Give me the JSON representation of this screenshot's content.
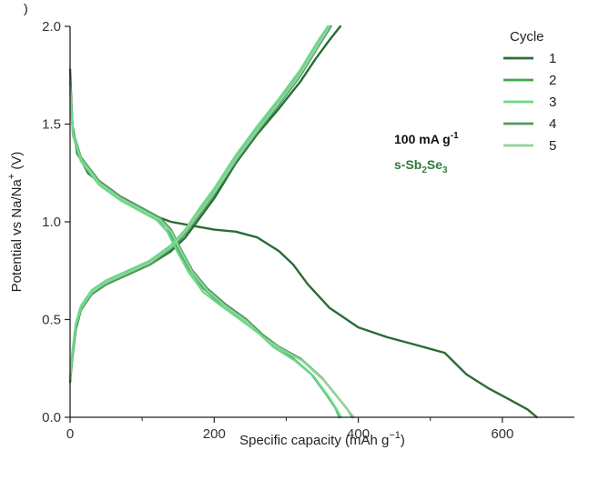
{
  "chart_data": {
    "type": "line",
    "panel_label": ")",
    "xlabel": "Specific capacity (mAh g",
    "xlabel_sup": "−1",
    "xlabel_end": ")",
    "ylabel": "Potential vs Na/Na",
    "ylabel_sup": "+",
    "ylabel_end": " (V)",
    "xlim": [
      0,
      700
    ],
    "ylim": [
      0,
      2.0
    ],
    "xticks": [
      0,
      200,
      400,
      600
    ],
    "yticks": [
      0.0,
      0.5,
      1.0,
      1.5,
      2.0
    ],
    "xtick_labels": [
      "0",
      "200",
      "400",
      "600"
    ],
    "ytick_labels": [
      "0.0",
      "0.5",
      "1.0",
      "1.5",
      "2.0"
    ],
    "grid": false,
    "legend": {
      "title": "Cycle",
      "placement": "top-right",
      "entries": [
        "1",
        "2",
        "3",
        "4",
        "5"
      ]
    },
    "annotations": {
      "rate": "100 mA g",
      "rate_sup": "-1",
      "material_prefix": "s-Sb",
      "material_sub1": "2",
      "material_mid": "Se",
      "material_sub2": "3",
      "material_color": "#2e7a3c"
    },
    "series": [
      {
        "name": "1",
        "color": "#2a6b36",
        "discharge": [
          [
            0,
            1.78
          ],
          [
            3,
            1.5
          ],
          [
            10,
            1.35
          ],
          [
            25,
            1.25
          ],
          [
            50,
            1.17
          ],
          [
            80,
            1.1
          ],
          [
            110,
            1.04
          ],
          [
            140,
            1.0
          ],
          [
            170,
            0.98
          ],
          [
            200,
            0.96
          ],
          [
            230,
            0.95
          ],
          [
            260,
            0.92
          ],
          [
            290,
            0.85
          ],
          [
            310,
            0.78
          ],
          [
            330,
            0.68
          ],
          [
            360,
            0.56
          ],
          [
            400,
            0.46
          ],
          [
            440,
            0.41
          ],
          [
            480,
            0.37
          ],
          [
            520,
            0.33
          ],
          [
            550,
            0.22
          ],
          [
            580,
            0.15
          ],
          [
            610,
            0.09
          ],
          [
            635,
            0.04
          ],
          [
            648,
            0.0
          ]
        ],
        "charge": [
          [
            0,
            0.18
          ],
          [
            3,
            0.3
          ],
          [
            8,
            0.45
          ],
          [
            15,
            0.55
          ],
          [
            30,
            0.63
          ],
          [
            50,
            0.68
          ],
          [
            80,
            0.73
          ],
          [
            110,
            0.78
          ],
          [
            140,
            0.85
          ],
          [
            160,
            0.92
          ],
          [
            180,
            1.02
          ],
          [
            200,
            1.12
          ],
          [
            230,
            1.3
          ],
          [
            260,
            1.45
          ],
          [
            290,
            1.58
          ],
          [
            320,
            1.72
          ],
          [
            340,
            1.83
          ],
          [
            360,
            1.93
          ],
          [
            375,
            2.0
          ]
        ]
      },
      {
        "name": "2",
        "color": "#3ba84f",
        "discharge": [
          [
            0,
            1.7
          ],
          [
            4,
            1.45
          ],
          [
            15,
            1.32
          ],
          [
            40,
            1.2
          ],
          [
            70,
            1.12
          ],
          [
            100,
            1.06
          ],
          [
            120,
            1.02
          ],
          [
            135,
            0.97
          ],
          [
            150,
            0.86
          ],
          [
            165,
            0.76
          ],
          [
            185,
            0.66
          ],
          [
            210,
            0.58
          ],
          [
            240,
            0.5
          ],
          [
            262,
            0.44
          ],
          [
            280,
            0.37
          ],
          [
            310,
            0.3
          ],
          [
            335,
            0.22
          ],
          [
            355,
            0.12
          ],
          [
            368,
            0.05
          ],
          [
            374,
            0.0
          ]
        ],
        "charge": [
          [
            0,
            0.2
          ],
          [
            3,
            0.32
          ],
          [
            8,
            0.47
          ],
          [
            15,
            0.56
          ],
          [
            30,
            0.64
          ],
          [
            50,
            0.69
          ],
          [
            80,
            0.74
          ],
          [
            110,
            0.79
          ],
          [
            140,
            0.87
          ],
          [
            160,
            0.95
          ],
          [
            180,
            1.06
          ],
          [
            200,
            1.16
          ],
          [
            230,
            1.33
          ],
          [
            260,
            1.48
          ],
          [
            290,
            1.62
          ],
          [
            320,
            1.77
          ],
          [
            345,
            1.92
          ],
          [
            360,
            2.0
          ]
        ]
      },
      {
        "name": "3",
        "color": "#6ed88a",
        "discharge": [
          [
            0,
            1.68
          ],
          [
            4,
            1.44
          ],
          [
            15,
            1.31
          ],
          [
            40,
            1.19
          ],
          [
            70,
            1.11
          ],
          [
            100,
            1.05
          ],
          [
            120,
            1.01
          ],
          [
            135,
            0.95
          ],
          [
            150,
            0.84
          ],
          [
            165,
            0.74
          ],
          [
            185,
            0.64
          ],
          [
            210,
            0.57
          ],
          [
            240,
            0.49
          ],
          [
            262,
            0.43
          ],
          [
            282,
            0.36
          ],
          [
            312,
            0.29
          ],
          [
            338,
            0.21
          ],
          [
            358,
            0.11
          ],
          [
            370,
            0.04
          ],
          [
            376,
            0.0
          ]
        ],
        "charge": [
          [
            0,
            0.2
          ],
          [
            3,
            0.33
          ],
          [
            8,
            0.48
          ],
          [
            15,
            0.57
          ],
          [
            30,
            0.65
          ],
          [
            50,
            0.7
          ],
          [
            80,
            0.75
          ],
          [
            110,
            0.8
          ],
          [
            140,
            0.88
          ],
          [
            160,
            0.96
          ],
          [
            180,
            1.07
          ],
          [
            200,
            1.17
          ],
          [
            230,
            1.34
          ],
          [
            260,
            1.49
          ],
          [
            290,
            1.63
          ],
          [
            320,
            1.78
          ],
          [
            345,
            1.93
          ],
          [
            358,
            2.0
          ]
        ]
      },
      {
        "name": "4",
        "color": "#4f9a5e",
        "discharge": [
          [
            0,
            1.72
          ],
          [
            4,
            1.46
          ],
          [
            15,
            1.33
          ],
          [
            40,
            1.21
          ],
          [
            70,
            1.13
          ],
          [
            100,
            1.07
          ],
          [
            125,
            1.02
          ],
          [
            140,
            0.96
          ],
          [
            155,
            0.85
          ],
          [
            170,
            0.75
          ],
          [
            190,
            0.66
          ],
          [
            215,
            0.58
          ],
          [
            245,
            0.5
          ],
          [
            268,
            0.42
          ],
          [
            290,
            0.36
          ],
          [
            320,
            0.3
          ],
          [
            350,
            0.2
          ],
          [
            372,
            0.1
          ],
          [
            385,
            0.04
          ],
          [
            392,
            0.0
          ]
        ],
        "charge": [
          [
            0,
            0.19
          ],
          [
            3,
            0.31
          ],
          [
            8,
            0.46
          ],
          [
            15,
            0.55
          ],
          [
            30,
            0.63
          ],
          [
            50,
            0.68
          ],
          [
            80,
            0.73
          ],
          [
            110,
            0.78
          ],
          [
            140,
            0.86
          ],
          [
            160,
            0.94
          ],
          [
            180,
            1.04
          ],
          [
            200,
            1.14
          ],
          [
            230,
            1.31
          ],
          [
            260,
            1.46
          ],
          [
            290,
            1.6
          ],
          [
            320,
            1.75
          ],
          [
            345,
            1.9
          ],
          [
            362,
            2.0
          ]
        ]
      },
      {
        "name": "5",
        "color": "#8fd49c",
        "discharge": [
          [
            0,
            1.69
          ],
          [
            4,
            1.45
          ],
          [
            15,
            1.32
          ],
          [
            40,
            1.2
          ],
          [
            70,
            1.12
          ],
          [
            100,
            1.06
          ],
          [
            125,
            1.01
          ],
          [
            140,
            0.95
          ],
          [
            155,
            0.84
          ],
          [
            170,
            0.74
          ],
          [
            190,
            0.65
          ],
          [
            215,
            0.57
          ],
          [
            245,
            0.49
          ],
          [
            268,
            0.41
          ],
          [
            292,
            0.35
          ],
          [
            322,
            0.29
          ],
          [
            352,
            0.19
          ],
          [
            374,
            0.09
          ],
          [
            387,
            0.03
          ],
          [
            394,
            0.0
          ]
        ],
        "charge": [
          [
            0,
            0.2
          ],
          [
            3,
            0.32
          ],
          [
            8,
            0.47
          ],
          [
            15,
            0.56
          ],
          [
            30,
            0.64
          ],
          [
            50,
            0.69
          ],
          [
            80,
            0.74
          ],
          [
            110,
            0.79
          ],
          [
            140,
            0.87
          ],
          [
            160,
            0.95
          ],
          [
            180,
            1.05
          ],
          [
            200,
            1.15
          ],
          [
            230,
            1.32
          ],
          [
            260,
            1.47
          ],
          [
            290,
            1.61
          ],
          [
            320,
            1.76
          ],
          [
            345,
            1.91
          ],
          [
            360,
            2.0
          ]
        ]
      }
    ]
  }
}
